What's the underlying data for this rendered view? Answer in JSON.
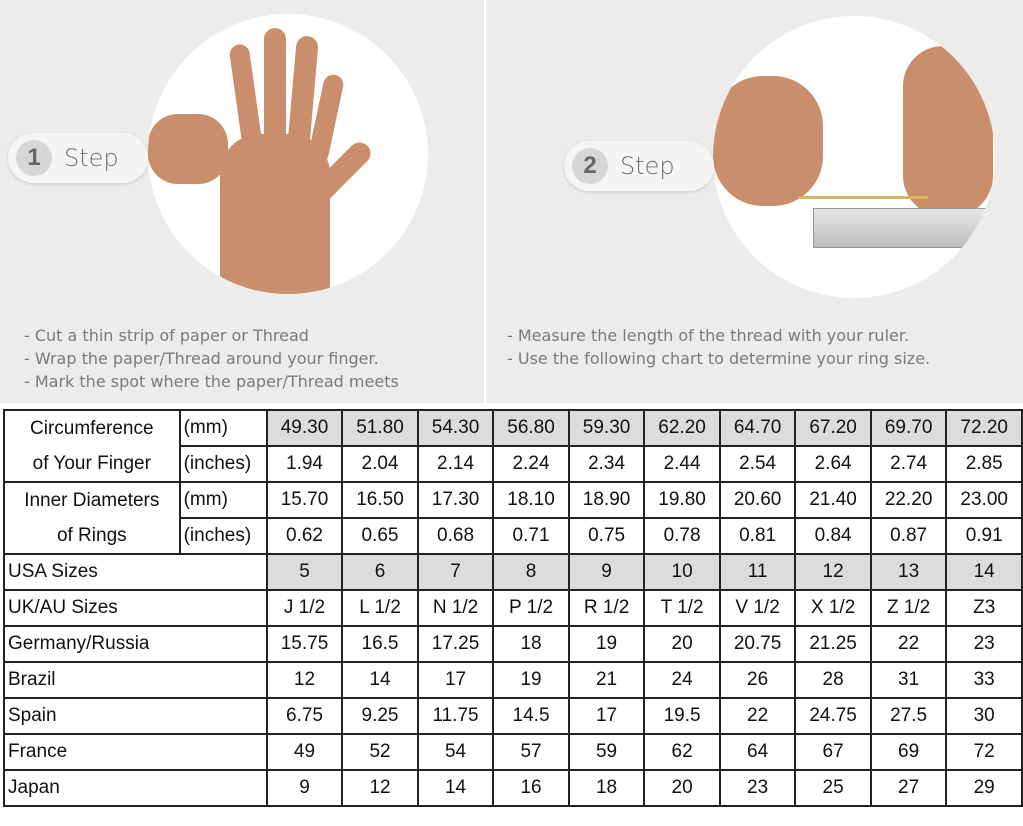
{
  "steps": [
    {
      "number": "1",
      "label": "Step",
      "instructions": [
        "- Cut a thin strip of paper or Thread",
        "- Wrap the paper/Thread around your finger.",
        "- Mark the spot where the paper/Thread meets"
      ]
    },
    {
      "number": "2",
      "label": "Step",
      "instructions": [
        "- Measure the length of the thread with your ruler.",
        "- Use the following chart to determine your ring size."
      ]
    }
  ],
  "table": {
    "circumference": {
      "label_line1": "Circumference",
      "label_line2": "of Your Finger",
      "unit_mm": "(mm)",
      "unit_in": "(inches)",
      "mm": [
        "49.30",
        "51.80",
        "54.30",
        "56.80",
        "59.30",
        "62.20",
        "64.70",
        "67.20",
        "69.70",
        "72.20"
      ],
      "inches": [
        "1.94",
        "2.04",
        "2.14",
        "2.24",
        "2.34",
        "2.44",
        "2.54",
        "2.64",
        "2.74",
        "2.85"
      ]
    },
    "inner_diameter": {
      "label_line1": "Inner Diameters",
      "label_line2": "of Rings",
      "unit_mm": "(mm)",
      "unit_in": "(inches)",
      "mm": [
        "15.70",
        "16.50",
        "17.30",
        "18.10",
        "18.90",
        "19.80",
        "20.60",
        "21.40",
        "22.20",
        "23.00"
      ],
      "inches": [
        "0.62",
        "0.65",
        "0.68",
        "0.71",
        "0.75",
        "0.78",
        "0.81",
        "0.84",
        "0.87",
        "0.91"
      ]
    },
    "rows": [
      {
        "label": "USA Sizes",
        "values": [
          "5",
          "6",
          "7",
          "8",
          "9",
          "10",
          "11",
          "12",
          "13",
          "14"
        ]
      },
      {
        "label": "UK/AU Sizes",
        "values": [
          "J 1/2",
          "L 1/2",
          "N 1/2",
          "P 1/2",
          "R 1/2",
          "T 1/2",
          "V 1/2",
          "X 1/2",
          "Z 1/2",
          "Z3"
        ]
      },
      {
        "label": "Germany/Russia",
        "values": [
          "15.75",
          "16.5",
          "17.25",
          "18",
          "19",
          "20",
          "20.75",
          "21.25",
          "22",
          "23"
        ]
      },
      {
        "label": "Brazil",
        "values": [
          "12",
          "14",
          "17",
          "19",
          "21",
          "24",
          "26",
          "28",
          "31",
          "33"
        ]
      },
      {
        "label": "Spain",
        "values": [
          "6.75",
          "9.25",
          "11.75",
          "14.5",
          "17",
          "19.5",
          "22",
          "24.75",
          "27.5",
          "30"
        ]
      },
      {
        "label": "France",
        "values": [
          "49",
          "52",
          "54",
          "57",
          "59",
          "62",
          "64",
          "67",
          "69",
          "72"
        ]
      },
      {
        "label": "Japan",
        "values": [
          "9",
          "12",
          "14",
          "16",
          "18",
          "20",
          "23",
          "25",
          "27",
          "29"
        ]
      }
    ]
  },
  "colors": {
    "panel_bg": "#eeecea",
    "header_shade": "#dcdcdc",
    "border": "#222222"
  }
}
